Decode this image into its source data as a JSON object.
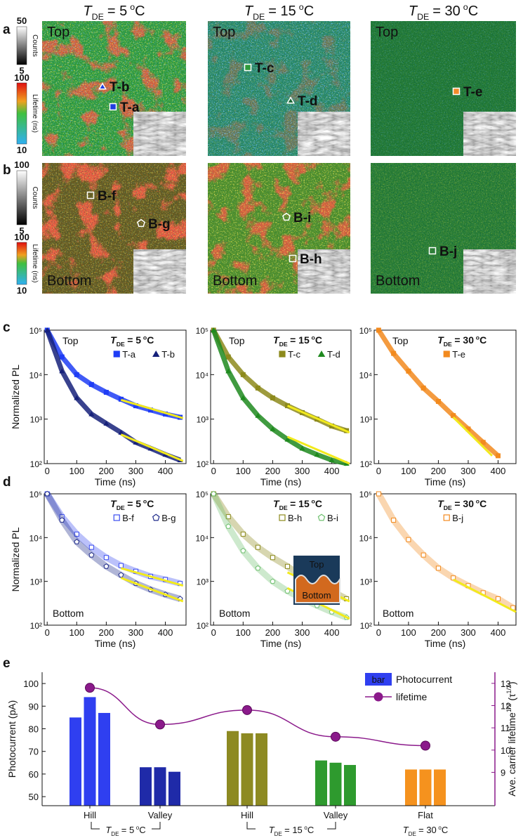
{
  "panel_labels": [
    "a",
    "b",
    "c",
    "d",
    "e"
  ],
  "images": {
    "columns": [
      {
        "title": {
          "symbol": "T",
          "subscript": "DE",
          "value": "= 5",
          "superscript": "o",
          "unit": "C"
        }
      },
      {
        "title": {
          "symbol": "T",
          "subscript": "DE",
          "value": "= 15",
          "superscript": "o",
          "unit": "C"
        }
      },
      {
        "title": {
          "symbol": "T",
          "subscript": "DE",
          "value": "= 30",
          "superscript": "o",
          "unit": "C"
        }
      }
    ],
    "colorbars": [
      {
        "counts_max": 50,
        "counts_min": 5,
        "counts_label": "Counts",
        "lifetime_max": 100,
        "lifetime_min": 10,
        "lifetime_label": "Lifetime (ns)"
      },
      {
        "counts_max": 100,
        "counts_min": 5,
        "counts_label": "Counts",
        "lifetime_max": 100,
        "lifetime_min": 10,
        "lifetime_label": "Lifetime (ns)"
      }
    ],
    "rows": [
      {
        "side": "Top",
        "cells": [
          {
            "markers": [
              {
                "label": "T-b",
                "shape": "triangle",
                "color": "#1f3de0"
              },
              {
                "label": "T-a",
                "shape": "square",
                "color": "#1f3de0"
              }
            ]
          },
          {
            "markers": [
              {
                "label": "T-c",
                "shape": "square",
                "color": "#2e9a3a"
              },
              {
                "label": "T-d",
                "shape": "triangle",
                "color": "#1f6a3a"
              }
            ]
          },
          {
            "markers": [
              {
                "label": "T-e",
                "shape": "square",
                "color": "#f28a2a"
              }
            ]
          }
        ]
      },
      {
        "side": "Bottom",
        "cells": [
          {
            "markers": [
              {
                "label": "B-f",
                "shape": "square",
                "color": "none"
              },
              {
                "label": "B-g",
                "shape": "pentagon",
                "color": "none"
              }
            ]
          },
          {
            "markers": [
              {
                "label": "B-i",
                "shape": "pentagon",
                "color": "none"
              },
              {
                "label": "B-h",
                "shape": "square",
                "color": "none"
              }
            ]
          },
          {
            "markers": [
              {
                "label": "B-j",
                "shape": "square",
                "color": "none"
              }
            ]
          }
        ]
      }
    ]
  },
  "chart_data": [
    {
      "type": "decay",
      "note": "Top",
      "title": {
        "symbol": "T",
        "subscript": "DE",
        "value": "= 5",
        "superscript": "o",
        "unit": "C"
      },
      "xlabel": "Time (ns)",
      "ylabel": "Normalized PL",
      "log_y": true,
      "xlim": [
        -10,
        470
      ],
      "xticks": [
        0,
        100,
        200,
        300,
        400
      ],
      "ylim": [
        100,
        100000
      ],
      "yticks": [
        {
          "value": 100,
          "label": "10²"
        },
        {
          "value": 1000,
          "label": "10³"
        },
        {
          "value": 10000,
          "label": "10⁴"
        },
        {
          "value": 100000,
          "label": "10⁵"
        }
      ],
      "x": [
        0,
        50,
        100,
        150,
        200,
        250,
        300,
        350,
        400,
        450
      ],
      "series": [
        {
          "name": "T-a",
          "color": "#1f3df5",
          "marker": "square",
          "filled": true,
          "values": [
            100000,
            25000,
            10000,
            6000,
            4000,
            2800,
            2000,
            1600,
            1300,
            1100
          ]
        },
        {
          "name": "T-b",
          "color": "#16217a",
          "marker": "triangle",
          "filled": true,
          "values": [
            100000,
            12000,
            3000,
            1300,
            800,
            500,
            300,
            220,
            160,
            120
          ]
        }
      ],
      "fits": [
        {
          "color": "#f2ea1c",
          "x": [
            250,
            460
          ],
          "values": [
            2700,
            1050
          ]
        },
        {
          "color": "#f2ea1c",
          "x": [
            250,
            460
          ],
          "values": [
            450,
            115
          ]
        }
      ]
    },
    {
      "type": "decay",
      "note": "Top",
      "title": {
        "symbol": "T",
        "subscript": "DE",
        "value": "= 15",
        "superscript": "o",
        "unit": "C"
      },
      "xlabel": "Time (ns)",
      "log_y": true,
      "xlim": [
        -10,
        465
      ],
      "xticks": [
        0,
        100,
        200,
        300,
        400
      ],
      "ylim": [
        100,
        100000
      ],
      "yticks": [
        {
          "value": 100,
          "label": "10²"
        },
        {
          "value": 1000,
          "label": "10³"
        },
        {
          "value": 10000,
          "label": "10⁴"
        },
        {
          "value": 100000,
          "label": "10⁵"
        }
      ],
      "x": [
        0,
        50,
        100,
        150,
        200,
        250,
        300,
        350,
        400,
        450
      ],
      "series": [
        {
          "name": "T-c",
          "color": "#8d8a1c",
          "marker": "square",
          "filled": true,
          "values": [
            100000,
            25000,
            10000,
            5000,
            3000,
            2000,
            1400,
            1000,
            700,
            550
          ]
        },
        {
          "name": "T-d",
          "color": "#1f8a1f",
          "marker": "triangle",
          "filled": true,
          "values": [
            100000,
            12000,
            3000,
            1200,
            600,
            350,
            220,
            160,
            120,
            100
          ]
        }
      ],
      "fits": [
        {
          "color": "#f2ea1c",
          "x": [
            250,
            460
          ],
          "values": [
            2000,
            500
          ]
        },
        {
          "color": "#f2ea1c",
          "x": [
            250,
            460
          ],
          "values": [
            400,
            100
          ]
        }
      ]
    },
    {
      "type": "decay",
      "note": "Top",
      "title": {
        "symbol": "T",
        "subscript": "DE",
        "value": "= 30",
        "superscript": "o",
        "unit": "C"
      },
      "xlabel": "Time (ns)",
      "log_y": true,
      "xlim": [
        -15,
        460
      ],
      "xticks": [
        0,
        100,
        200,
        300,
        400
      ],
      "ylim": [
        100,
        100000
      ],
      "yticks": [
        {
          "value": 100,
          "label": "10²"
        },
        {
          "value": 1000,
          "label": "10³"
        },
        {
          "value": 10000,
          "label": "10⁴"
        },
        {
          "value": 100000,
          "label": "10⁵"
        }
      ],
      "x": [
        0,
        50,
        100,
        150,
        200,
        250,
        300,
        350,
        400
      ],
      "series": [
        {
          "name": "T-e",
          "color": "#f28a1e",
          "marker": "square",
          "filled": true,
          "values": [
            100000,
            30000,
            12000,
            5000,
            2500,
            1200,
            600,
            300,
            150
          ]
        }
      ],
      "fits": [
        {
          "color": "#f2ea1c",
          "x": [
            250,
            380
          ],
          "values": [
            1100,
            150
          ]
        }
      ]
    },
    {
      "type": "decay",
      "note": "Bottom",
      "title": {
        "symbol": "T",
        "subscript": "DE",
        "value": "= 5",
        "superscript": "o",
        "unit": "C"
      },
      "xlabel": "Time (ns)",
      "ylabel": "Normalized PL",
      "log_y": true,
      "xlim": [
        -10,
        470
      ],
      "xticks": [
        0,
        100,
        200,
        300,
        400
      ],
      "ylim": [
        100,
        100000
      ],
      "yticks": [
        {
          "value": 100,
          "label": "10²"
        },
        {
          "value": 1000,
          "label": "10³"
        },
        {
          "value": 10000,
          "label": "10⁴"
        },
        {
          "value": 100000,
          "label": "10⁵"
        }
      ],
      "x": [
        0,
        50,
        100,
        150,
        200,
        250,
        300,
        350,
        400,
        450
      ],
      "series": [
        {
          "name": "B-f",
          "color": "#3b4df0",
          "marker": "square",
          "filled": false,
          "values": [
            100000,
            30000,
            12000,
            6000,
            3500,
            2300,
            1700,
            1300,
            1100,
            900
          ]
        },
        {
          "name": "B-g",
          "color": "#1e2a8a",
          "marker": "pentagon",
          "filled": false,
          "values": [
            100000,
            25000,
            8000,
            4000,
            2200,
            1400,
            900,
            650,
            500,
            400
          ]
        }
      ],
      "fits": [
        {
          "color": "#f2ea1c",
          "x": [
            250,
            460
          ],
          "values": [
            2000,
            800
          ]
        },
        {
          "color": "#f2ea1c",
          "x": [
            250,
            460
          ],
          "values": [
            1200,
            350
          ]
        }
      ]
    },
    {
      "type": "decay",
      "note": "Bottom",
      "title": {
        "symbol": "T",
        "subscript": "DE",
        "value": "= 15",
        "superscript": "o",
        "unit": "C"
      },
      "xlabel": "Time (ns)",
      "log_y": true,
      "xlim": [
        -10,
        465
      ],
      "xticks": [
        0,
        100,
        200,
        300,
        400
      ],
      "ylim": [
        100,
        100000
      ],
      "yticks": [
        {
          "value": 100,
          "label": "10²"
        },
        {
          "value": 1000,
          "label": "10³"
        },
        {
          "value": 10000,
          "label": "10⁴"
        },
        {
          "value": 100000,
          "label": "10⁵"
        }
      ],
      "x": [
        0,
        50,
        100,
        150,
        200,
        250,
        300,
        350,
        400,
        450
      ],
      "series": [
        {
          "name": "B-h",
          "color": "#8d8a1c",
          "marker": "square",
          "filled": false,
          "values": [
            100000,
            30000,
            12000,
            6000,
            3500,
            2200,
            1300,
            900,
            600,
            400
          ]
        },
        {
          "name": "B-i",
          "color": "#6fc06f",
          "marker": "pentagon",
          "filled": false,
          "values": [
            100000,
            18000,
            5000,
            2000,
            1000,
            600,
            400,
            280,
            200,
            150
          ]
        }
      ],
      "fits": [
        {
          "color": "#f2ea1c",
          "x": [
            250,
            460
          ],
          "values": [
            1600,
            350
          ]
        },
        {
          "color": "#f2ea1c",
          "x": [
            250,
            460
          ],
          "values": [
            700,
            140
          ]
        }
      ],
      "inset": {
        "top": "Top",
        "bottom": "Bottom"
      }
    },
    {
      "type": "decay",
      "note": "Bottom",
      "title": {
        "symbol": "T",
        "subscript": "DE",
        "value": "= 30",
        "superscript": "o",
        "unit": "C"
      },
      "xlabel": "Time (ns)",
      "log_y": true,
      "xlim": [
        -15,
        460
      ],
      "xticks": [
        0,
        100,
        200,
        300,
        400
      ],
      "ylim": [
        100,
        100000
      ],
      "yticks": [
        {
          "value": 100,
          "label": "10²"
        },
        {
          "value": 1000,
          "label": "10³"
        },
        {
          "value": 10000,
          "label": "10⁴"
        },
        {
          "value": 100000,
          "label": "10⁵"
        }
      ],
      "x": [
        0,
        50,
        100,
        150,
        200,
        250,
        300,
        350,
        400,
        450
      ],
      "series": [
        {
          "name": "B-j",
          "color": "#f28a1e",
          "marker": "square",
          "filled": false,
          "values": [
            100000,
            25000,
            9000,
            4000,
            2000,
            1200,
            800,
            550,
            400,
            250
          ]
        }
      ],
      "fits": [
        {
          "color": "#f2ea1c",
          "x": [
            250,
            460
          ],
          "values": [
            1100,
            200
          ]
        }
      ]
    },
    {
      "type": "bar_line",
      "categories": [
        "Hill",
        "Valley",
        "Hill",
        "Valley",
        "Flat"
      ],
      "group_labels": [
        {
          "symbol": "T",
          "subscript": "DE",
          "value": "= 5",
          "superscript": "o",
          "unit": "C"
        },
        {
          "symbol": "T",
          "subscript": "DE",
          "value": "= 15",
          "superscript": "o",
          "unit": "C"
        },
        {
          "symbol": "T",
          "subscript": "DE",
          "value": "= 30",
          "superscript": "o",
          "unit": "C"
        }
      ],
      "ylabel": "Photocurrent (pA)",
      "y2label": {
        "text": "Ave. carrier lifetime",
        "sup": "1/2",
        "open": "(τ",
        "open_sup": "1/2",
        "close": ")"
      },
      "ylim": [
        46,
        105
      ],
      "yticks": [
        50,
        60,
        70,
        80,
        90,
        100
      ],
      "y2lim": [
        7.5,
        13.5
      ],
      "y2ticks": [
        9,
        10,
        11,
        12,
        13
      ],
      "series": [
        {
          "name": "Photocurrent",
          "legend_symbol": "bar",
          "colors": [
            "#2f3ff0",
            "#1f2aa8",
            "#8d8a22",
            "#2e9a2e",
            "#f5921e"
          ],
          "values": [
            [
              85,
              94,
              87
            ],
            [
              63,
              63,
              61
            ],
            [
              79,
              78,
              78
            ],
            [
              66,
              65,
              64
            ],
            [
              62,
              62,
              62
            ]
          ]
        },
        {
          "name": "lifetime",
          "color": "#8b1a8b",
          "axis": "y2",
          "values": [
            12.8,
            11.15,
            11.8,
            10.6,
            10.2
          ]
        }
      ]
    }
  ]
}
